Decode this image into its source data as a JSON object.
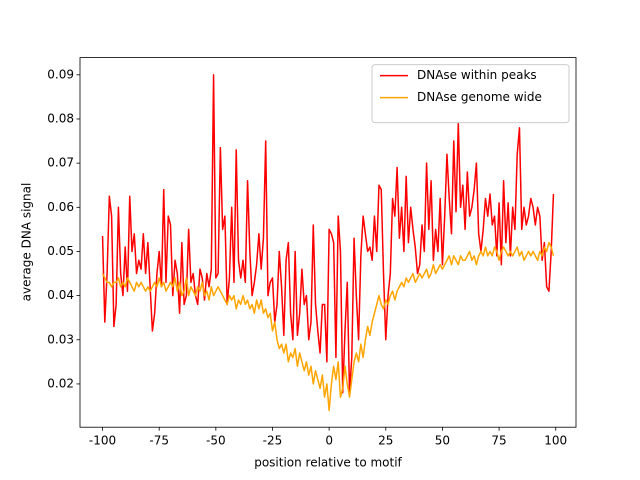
{
  "chart_data": {
    "type": "line",
    "xlabel": "position relative to motif",
    "ylabel": "average DNA signal",
    "x": [
      -100,
      -99,
      -98,
      -97,
      -96,
      -95,
      -94,
      -93,
      -92,
      -91,
      -90,
      -89,
      -88,
      -87,
      -86,
      -85,
      -84,
      -83,
      -82,
      -81,
      -80,
      -79,
      -78,
      -77,
      -76,
      -75,
      -74,
      -73,
      -72,
      -71,
      -70,
      -69,
      -68,
      -67,
      -66,
      -65,
      -64,
      -63,
      -62,
      -61,
      -60,
      -59,
      -58,
      -57,
      -56,
      -55,
      -54,
      -53,
      -52,
      -51,
      -50,
      -49,
      -48,
      -47,
      -46,
      -45,
      -44,
      -43,
      -42,
      -41,
      -40,
      -39,
      -38,
      -37,
      -36,
      -35,
      -34,
      -33,
      -32,
      -31,
      -30,
      -29,
      -28,
      -27,
      -26,
      -25,
      -24,
      -23,
      -22,
      -21,
      -20,
      -19,
      -18,
      -17,
      -16,
      -15,
      -14,
      -13,
      -12,
      -11,
      -10,
      -9,
      -8,
      -7,
      -6,
      -5,
      -4,
      -3,
      -2,
      -1,
      0,
      1,
      2,
      3,
      4,
      5,
      6,
      7,
      8,
      9,
      10,
      11,
      12,
      13,
      14,
      15,
      16,
      17,
      18,
      19,
      20,
      21,
      22,
      23,
      24,
      25,
      26,
      27,
      28,
      29,
      30,
      31,
      32,
      33,
      34,
      35,
      36,
      37,
      38,
      39,
      40,
      41,
      42,
      43,
      44,
      45,
      46,
      47,
      48,
      49,
      50,
      51,
      52,
      53,
      54,
      55,
      56,
      57,
      58,
      59,
      60,
      61,
      62,
      63,
      64,
      65,
      66,
      67,
      68,
      69,
      70,
      71,
      72,
      73,
      74,
      75,
      76,
      77,
      78,
      79,
      80,
      81,
      82,
      83,
      84,
      85,
      86,
      87,
      88,
      89,
      90,
      91,
      92,
      93,
      94,
      95,
      96,
      97,
      98,
      99
    ],
    "series": [
      {
        "name": "DNAse within peaks",
        "color": "#ff0000",
        "values": [
          0.0535,
          0.034,
          0.045,
          0.0625,
          0.058,
          0.033,
          0.038,
          0.06,
          0.045,
          0.04,
          0.051,
          0.041,
          0.0625,
          0.05,
          0.054,
          0.045,
          0.048,
          0.046,
          0.054,
          0.045,
          0.052,
          0.042,
          0.032,
          0.036,
          0.045,
          0.05,
          0.042,
          0.064,
          0.043,
          0.058,
          0.056,
          0.04,
          0.048,
          0.045,
          0.036,
          0.052,
          0.038,
          0.04,
          0.055,
          0.043,
          0.045,
          0.04,
          0.038,
          0.046,
          0.044,
          0.039,
          0.045,
          0.042,
          0.046,
          0.09,
          0.044,
          0.045,
          0.0735,
          0.055,
          0.058,
          0.038,
          0.044,
          0.06,
          0.043,
          0.073,
          0.048,
          0.044,
          0.048,
          0.043,
          0.066,
          0.05,
          0.04,
          0.043,
          0.047,
          0.054,
          0.046,
          0.053,
          0.075,
          0.04,
          0.043,
          0.044,
          0.034,
          0.038,
          0.05,
          0.042,
          0.031,
          0.048,
          0.052,
          0.036,
          0.03,
          0.05,
          0.031,
          0.036,
          0.046,
          0.038,
          0.04,
          0.03,
          0.034,
          0.056,
          0.038,
          0.032,
          0.027,
          0.038,
          0.038,
          0.025,
          0.055,
          0.054,
          0.052,
          0.026,
          0.058,
          0.05,
          0.018,
          0.032,
          0.043,
          0.018,
          0.026,
          0.053,
          0.04,
          0.03,
          0.049,
          0.058,
          0.054,
          0.05,
          0.051,
          0.048,
          0.058,
          0.05,
          0.065,
          0.064,
          0.045,
          0.03,
          0.04,
          0.045,
          0.062,
          0.058,
          0.069,
          0.053,
          0.06,
          0.05,
          0.067,
          0.052,
          0.06,
          0.055,
          0.051,
          0.045,
          0.047,
          0.056,
          0.05,
          0.07,
          0.055,
          0.066,
          0.048,
          0.055,
          0.05,
          0.062,
          0.047,
          0.058,
          0.072,
          0.062,
          0.054,
          0.075,
          0.059,
          0.079,
          0.06,
          0.065,
          0.055,
          0.068,
          0.058,
          0.06,
          0.064,
          0.07,
          0.054,
          0.05,
          0.055,
          0.062,
          0.058,
          0.063,
          0.056,
          0.058,
          0.049,
          0.061,
          0.047,
          0.066,
          0.052,
          0.061,
          0.049,
          0.06,
          0.055,
          0.072,
          0.078,
          0.055,
          0.06,
          0.056,
          0.058,
          0.062,
          0.06,
          0.056,
          0.06,
          0.058,
          0.048,
          0.052,
          0.042,
          0.041,
          0.05,
          0.063
        ]
      },
      {
        "name": "DNAse genome wide",
        "color": "#ffa500",
        "values": [
          0.045,
          0.044,
          0.043,
          0.043,
          0.042,
          0.043,
          0.043,
          0.044,
          0.042,
          0.043,
          0.042,
          0.044,
          0.043,
          0.042,
          0.041,
          0.043,
          0.042,
          0.043,
          0.042,
          0.041,
          0.042,
          0.041,
          0.042,
          0.043,
          0.042,
          0.044,
          0.042,
          0.043,
          0.041,
          0.042,
          0.043,
          0.042,
          0.044,
          0.041,
          0.043,
          0.04,
          0.041,
          0.044,
          0.04,
          0.042,
          0.041,
          0.04,
          0.042,
          0.041,
          0.043,
          0.04,
          0.041,
          0.039,
          0.042,
          0.04,
          0.041,
          0.042,
          0.041,
          0.04,
          0.039,
          0.038,
          0.04,
          0.039,
          0.04,
          0.037,
          0.039,
          0.038,
          0.04,
          0.038,
          0.039,
          0.037,
          0.038,
          0.036,
          0.039,
          0.037,
          0.039,
          0.036,
          0.037,
          0.035,
          0.036,
          0.032,
          0.034,
          0.03,
          0.028,
          0.029,
          0.027,
          0.029,
          0.025,
          0.027,
          0.026,
          0.028,
          0.024,
          0.027,
          0.025,
          0.023,
          0.025,
          0.022,
          0.024,
          0.02,
          0.023,
          0.021,
          0.019,
          0.022,
          0.017,
          0.02,
          0.014,
          0.02,
          0.024,
          0.021,
          0.025,
          0.017,
          0.019,
          0.024,
          0.02,
          0.017,
          0.021,
          0.025,
          0.027,
          0.025,
          0.029,
          0.026,
          0.03,
          0.033,
          0.031,
          0.034,
          0.036,
          0.038,
          0.04,
          0.038,
          0.037,
          0.039,
          0.038,
          0.04,
          0.041,
          0.039,
          0.041,
          0.042,
          0.043,
          0.042,
          0.044,
          0.043,
          0.044,
          0.045,
          0.043,
          0.044,
          0.045,
          0.044,
          0.045,
          0.046,
          0.044,
          0.045,
          0.047,
          0.045,
          0.046,
          0.047,
          0.046,
          0.047,
          0.048,
          0.049,
          0.047,
          0.049,
          0.048,
          0.047,
          0.049,
          0.048,
          0.048,
          0.049,
          0.05,
          0.048,
          0.049,
          0.047,
          0.049,
          0.05,
          0.049,
          0.051,
          0.049,
          0.05,
          0.049,
          0.051,
          0.05,
          0.048,
          0.05,
          0.051,
          0.05,
          0.049,
          0.05,
          0.049,
          0.05,
          0.051,
          0.049,
          0.05,
          0.048,
          0.049,
          0.05,
          0.049,
          0.05,
          0.049,
          0.048,
          0.05,
          0.049,
          0.051,
          0.05,
          0.052,
          0.051,
          0.049
        ]
      }
    ],
    "xlim": [
      -109.95,
      108.95
    ],
    "ylim": [
      0.0102,
      0.0939
    ],
    "xticks": [
      -100,
      -75,
      -50,
      -25,
      0,
      25,
      50,
      75,
      100
    ],
    "yticks": [
      0.02,
      0.03,
      0.04,
      0.05,
      0.06,
      0.07,
      0.08,
      0.09
    ],
    "legend": "upper right"
  }
}
